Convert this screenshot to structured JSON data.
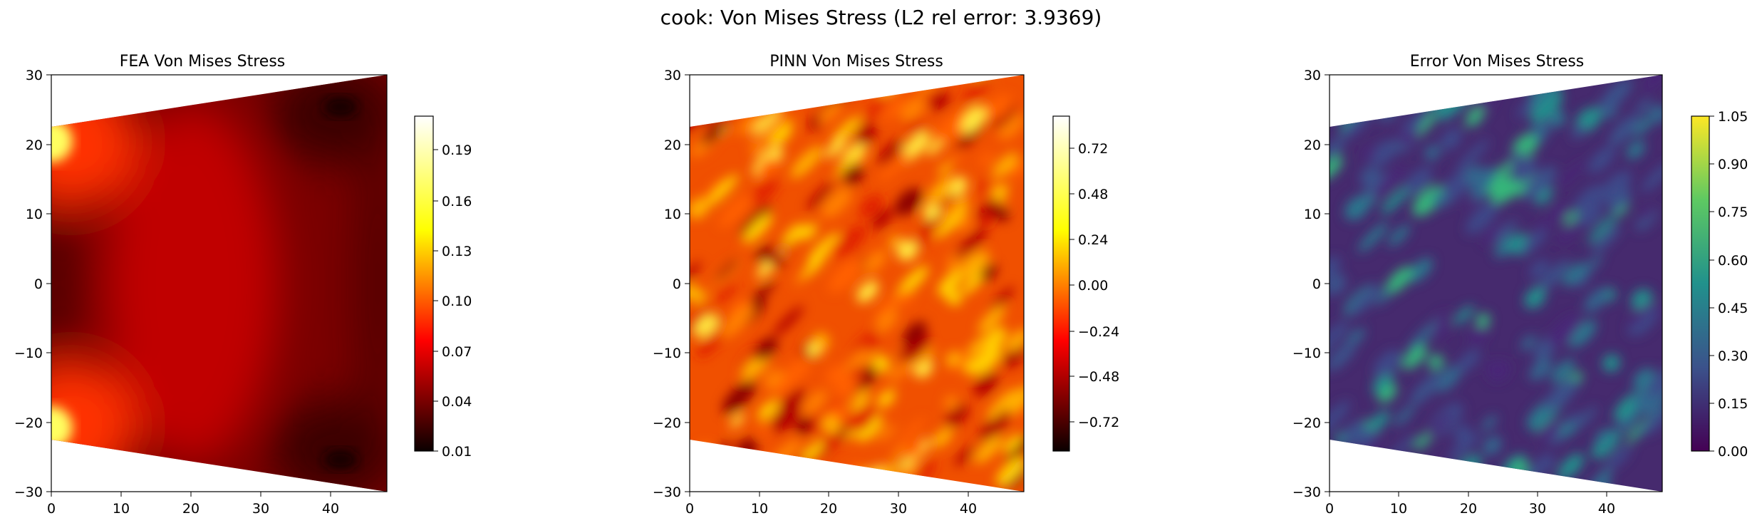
{
  "suptitle": "cook: Von Mises Stress (L2 rel error: 3.9369)",
  "chart_data": [
    {
      "type": "heatmap",
      "title": "FEA Von Mises Stress",
      "colormap": "hot",
      "xlim": [
        0,
        48
      ],
      "ylim": [
        -30,
        30
      ],
      "xticks": [
        "0",
        "10",
        "20",
        "30",
        "40"
      ],
      "yticks": [
        "30",
        "20",
        "10",
        "0",
        "−10",
        "−20",
        "−30"
      ],
      "domain_polygon": [
        [
          0,
          -22
        ],
        [
          48,
          -30
        ],
        [
          48,
          30
        ],
        [
          0,
          22
        ]
      ],
      "colorbar": {
        "range": [
          0.01,
          0.21
        ],
        "ticks": [
          "0.01",
          "0.04",
          "0.07",
          "0.10",
          "0.13",
          "0.16",
          "0.19"
        ]
      }
    },
    {
      "type": "heatmap",
      "title": "PINN Von Mises Stress",
      "colormap": "hot",
      "xlim": [
        0,
        48
      ],
      "ylim": [
        -30,
        30
      ],
      "xticks": [
        "0",
        "10",
        "20",
        "30",
        "40"
      ],
      "yticks": [
        "30",
        "20",
        "10",
        "0",
        "−10",
        "−20",
        "−30"
      ],
      "domain_polygon": [
        [
          0,
          -22
        ],
        [
          48,
          -30
        ],
        [
          48,
          30
        ],
        [
          0,
          22
        ]
      ],
      "colorbar": {
        "range": [
          -0.88,
          0.82
        ],
        "ticks": [
          "−0.72",
          "−0.48",
          "−0.24",
          "0.00",
          "0.24",
          "0.48",
          "0.72"
        ]
      }
    },
    {
      "type": "heatmap",
      "title": "Error Von Mises Stress",
      "colormap": "viridis",
      "xlim": [
        0,
        48
      ],
      "ylim": [
        -30,
        30
      ],
      "xticks": [
        "0",
        "10",
        "20",
        "30",
        "40"
      ],
      "yticks": [
        "30",
        "20",
        "10",
        "0",
        "−10",
        "−20",
        "−30"
      ],
      "domain_polygon": [
        [
          0,
          -22
        ],
        [
          48,
          -30
        ],
        [
          48,
          30
        ],
        [
          0,
          22
        ]
      ],
      "colorbar": {
        "range": [
          0.0,
          1.05
        ],
        "ticks": [
          "0.00",
          "0.15",
          "0.30",
          "0.45",
          "0.60",
          "0.75",
          "0.90",
          "1.05"
        ]
      }
    }
  ]
}
